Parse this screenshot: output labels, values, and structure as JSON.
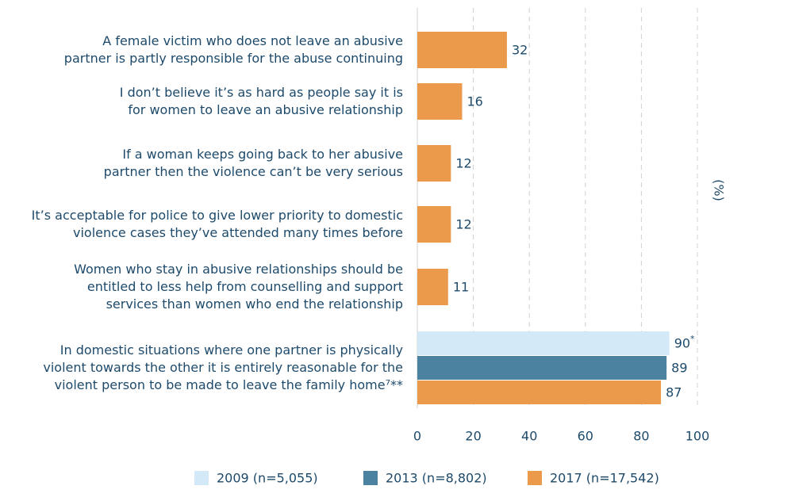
{
  "chart_data": {
    "type": "bar",
    "orientation": "horizontal",
    "axis_label": "(%)",
    "categories": [
      "A female victim who does not leave an abusive\npartner is partly responsible for the abuse continuing",
      "I don’t believe it’s as hard as people say it is\nfor women to leave an abusive relationship",
      "If a woman keeps going back to her abusive\npartner then the violence can’t be very serious",
      "It’s acceptable for police to give lower priority to domestic\nviolence cases they’ve attended many times before",
      "Women who stay in abusive relationships should be\nentitled to less help from counselling and support\nservices than women who end the relationship",
      "In domestic situations where one partner is physically\nviolent towards the other it is entirely reasonable for the\nviolent person to be made to leave the family home⁷**"
    ],
    "series": [
      {
        "name": "2009 (n=5,055)",
        "color": "#d4e9f8",
        "values": [
          null,
          null,
          null,
          null,
          null,
          90
        ],
        "value_labels": [
          null,
          null,
          null,
          null,
          null,
          "90*"
        ]
      },
      {
        "name": "2013 (n=8,802)",
        "color": "#4a82a0",
        "values": [
          null,
          null,
          null,
          null,
          null,
          89
        ]
      },
      {
        "name": "2017 (n=17,542)",
        "color": "#eb9a4c",
        "values": [
          32,
          16,
          12,
          12,
          11,
          87
        ]
      }
    ],
    "xlim": [
      0,
      100
    ],
    "xticks": [
      0,
      20,
      40,
      60,
      80,
      100
    ],
    "grid": true
  }
}
